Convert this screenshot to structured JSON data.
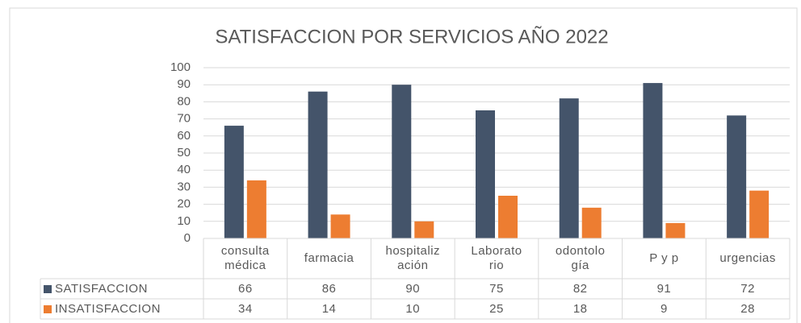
{
  "chart_data": {
    "type": "bar",
    "title": "SATISFACCION POR SERVICIOS AÑO 2022",
    "categories": [
      "consulta\nmédica",
      "farmacia",
      "hospitaliz\nación",
      "Laborato\nrio",
      "odontolo\ngía",
      "P y p",
      "urgencias"
    ],
    "series": [
      {
        "name": "SATISFACCION",
        "color": "#44546a",
        "values": [
          66,
          86,
          90,
          75,
          82,
          91,
          72
        ]
      },
      {
        "name": "INSATISFACCION",
        "color": "#ed7d31",
        "values": [
          34,
          14,
          10,
          25,
          18,
          9,
          28
        ]
      }
    ],
    "ylim": [
      0,
      100
    ],
    "yticks": [
      0,
      10,
      20,
      30,
      40,
      50,
      60,
      70,
      80,
      90,
      100
    ],
    "grid": true,
    "data_table": true
  }
}
